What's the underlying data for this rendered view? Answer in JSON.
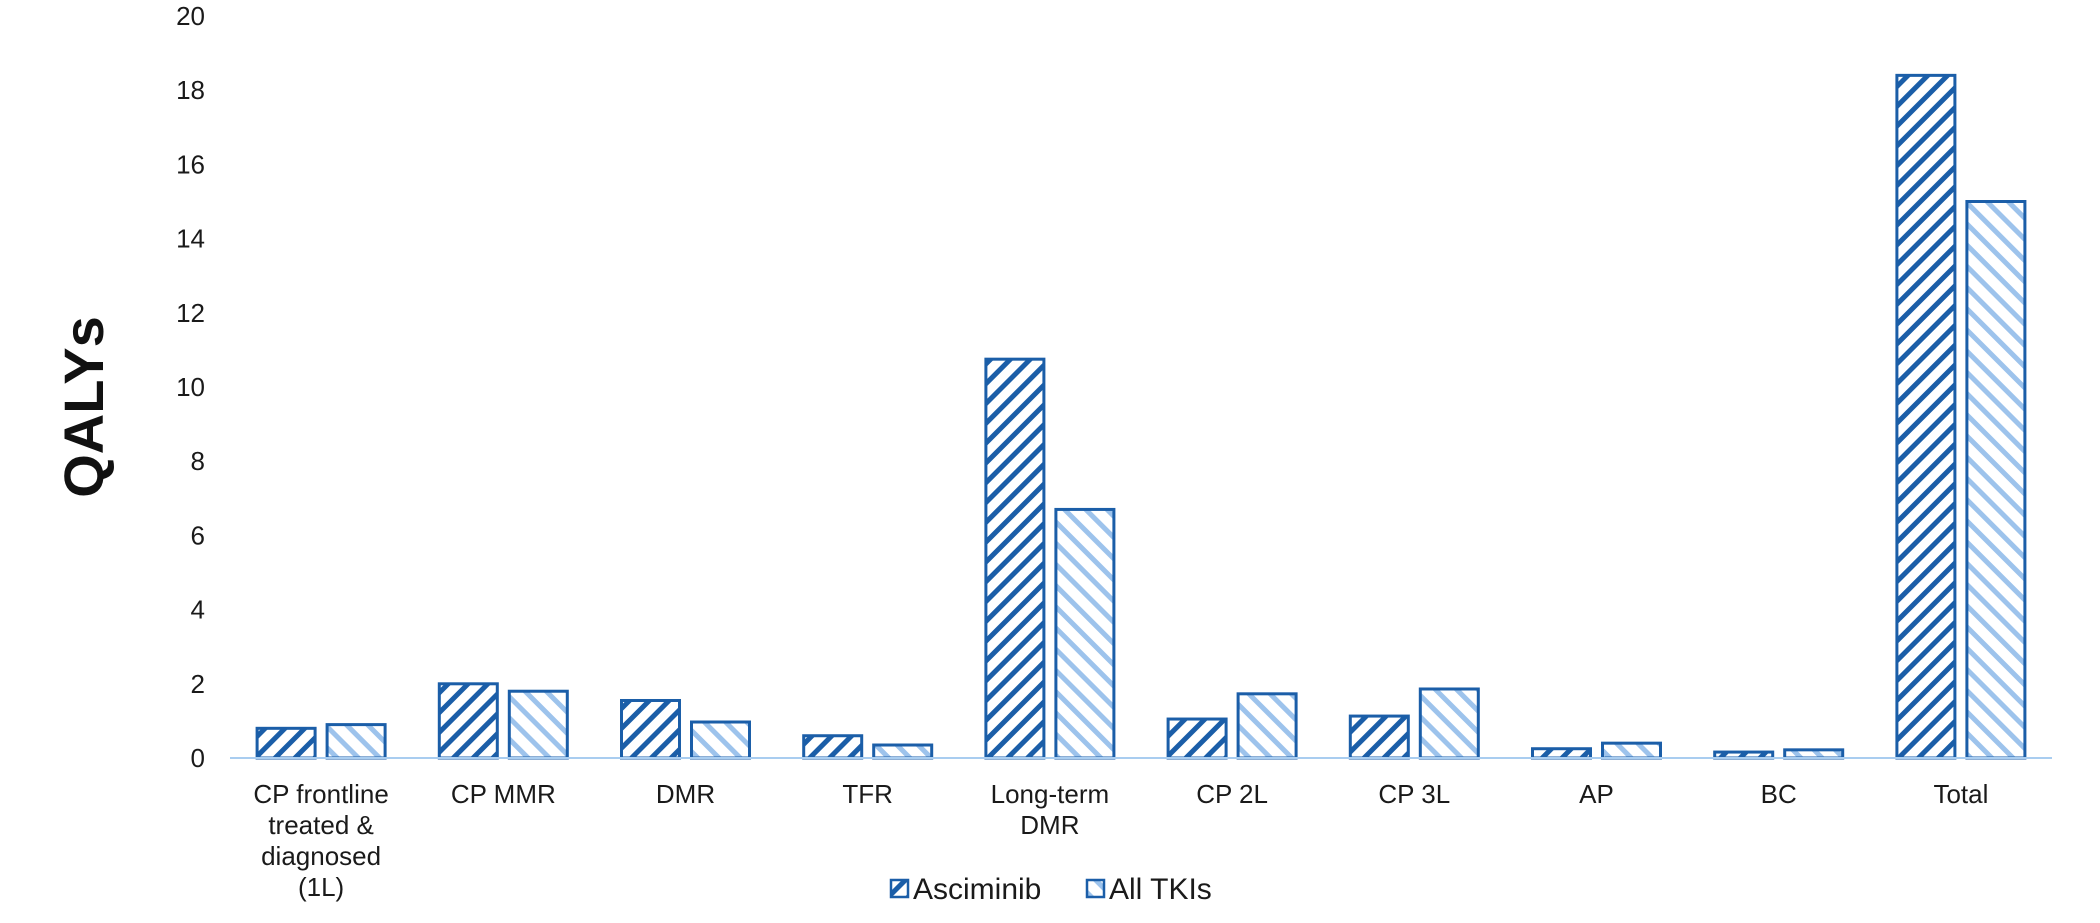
{
  "chart_data": {
    "type": "bar",
    "title": "",
    "xlabel": "",
    "ylabel": "QALYs",
    "ylim": [
      0,
      20
    ],
    "yticks": [
      0,
      2,
      4,
      6,
      8,
      10,
      12,
      14,
      16,
      18,
      20
    ],
    "grid": false,
    "legend_position": "bottom",
    "categories": [
      "CP frontline treated & diagnosed (1L)",
      "CP MMR",
      "DMR",
      "TFR",
      "Long-term DMR",
      "CP 2L",
      "CP 3L",
      "AP",
      "BC",
      "Total"
    ],
    "category_label_lines": [
      [
        "CP frontline",
        "treated &",
        "diagnosed",
        "(1L)"
      ],
      [
        "CP MMR"
      ],
      [
        "DMR"
      ],
      [
        "TFR"
      ],
      [
        "Long-term",
        "DMR"
      ],
      [
        "CP 2L"
      ],
      [
        "CP 3L"
      ],
      [
        "AP"
      ],
      [
        "BC"
      ],
      [
        "Total"
      ]
    ],
    "series": [
      {
        "name": "Asciminib",
        "pattern": "forward-diagonal-hatch",
        "color": "#1b5ea8",
        "border": "#1b5ea8",
        "values": [
          0.8,
          2.0,
          1.55,
          0.6,
          10.75,
          1.05,
          1.13,
          0.25,
          0.16,
          18.4
        ]
      },
      {
        "name": "All TKIs",
        "pattern": "backward-diagonal-hatch",
        "color": "#9dc3ec",
        "border": "#1b5ea8",
        "values": [
          0.9,
          1.8,
          0.97,
          0.35,
          6.7,
          1.73,
          1.86,
          0.4,
          0.22,
          15.0
        ]
      }
    ],
    "axis_color": "#a9cdf0"
  }
}
